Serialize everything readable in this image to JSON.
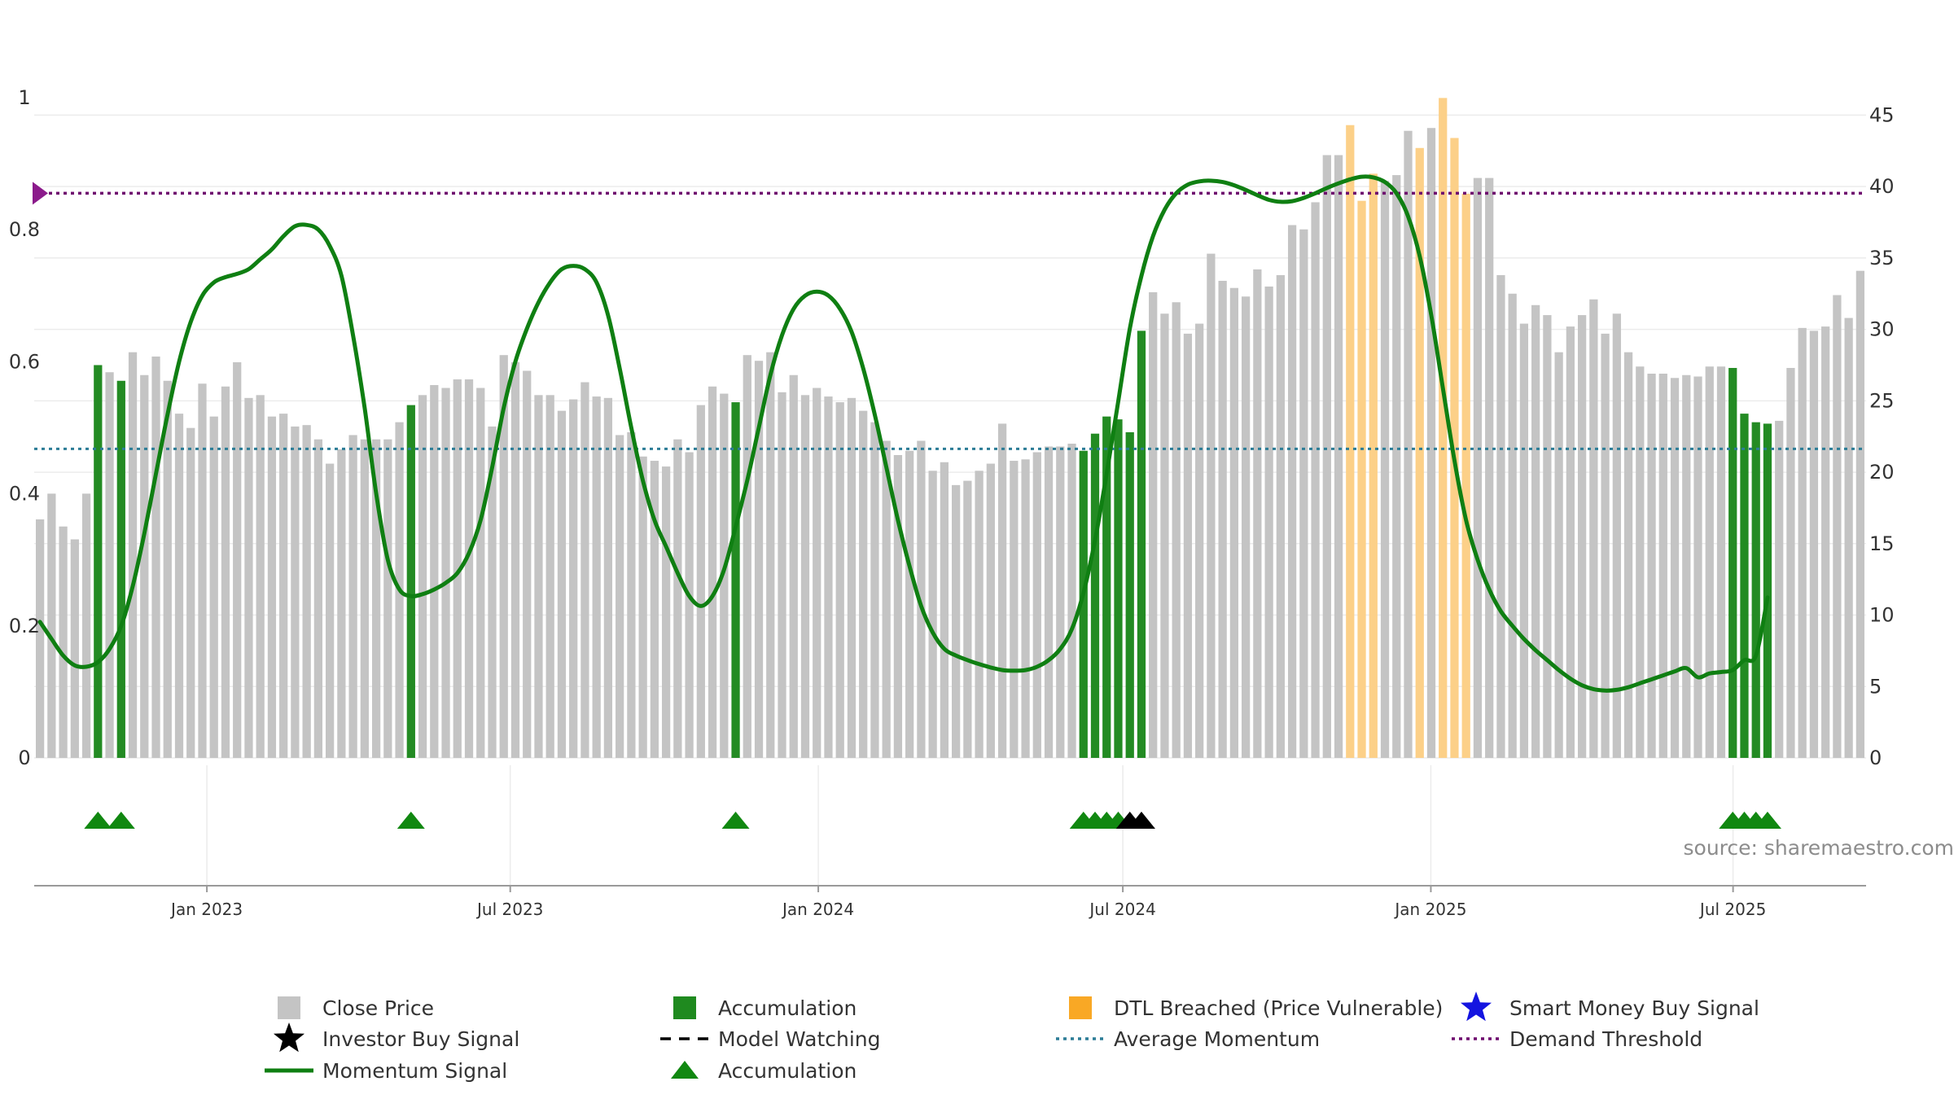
{
  "chart_data": {
    "type": "bar",
    "source": "source: sharemaestro.com",
    "left_axis": {
      "min": 0,
      "max": 1,
      "ticks": [
        "0",
        "0.2",
        "0.4",
        "0.6",
        "0.8",
        "1"
      ],
      "tick_values": [
        0,
        0.2,
        0.4,
        0.6,
        0.8,
        1
      ]
    },
    "right_axis": {
      "min": 0,
      "max": 48.5,
      "ticks": [
        "0",
        "5",
        "10",
        "15",
        "20",
        "25",
        "30",
        "35",
        "40",
        "45"
      ],
      "tick_values": [
        0,
        5,
        10,
        15,
        20,
        25,
        30,
        35,
        40,
        45
      ]
    },
    "x_axis": {
      "ticks": [
        "Jan 2023",
        "Jul 2023",
        "Jan 2024",
        "Jul 2024",
        "Jan 2025",
        "Jul 2025"
      ],
      "tick_positions": [
        14.8,
        40.8,
        67.2,
        93.3,
        119.7,
        145.6
      ],
      "total_weeks": 157
    },
    "close_price": [
      16.7,
      18.5,
      16.2,
      15.3,
      18.5,
      27.5,
      27.0,
      26.4,
      28.4,
      26.8,
      28.1,
      26.4,
      24.1,
      23.1,
      26.2,
      23.9,
      26.0,
      27.7,
      25.2,
      25.4,
      23.9,
      24.1,
      23.2,
      23.3,
      22.3,
      20.6,
      21.6,
      22.6,
      22.3,
      22.3,
      22.3,
      23.5,
      24.7,
      25.4,
      26.1,
      25.9,
      26.5,
      26.5,
      25.9,
      23.2,
      28.2,
      27.7,
      27.1,
      25.4,
      25.4,
      24.3,
      25.1,
      26.3,
      25.3,
      25.2,
      22.6,
      22.8,
      21.1,
      20.8,
      20.4,
      22.3,
      21.4,
      24.7,
      26.0,
      25.5,
      24.9,
      28.2,
      27.8,
      28.4,
      25.6,
      26.8,
      25.4,
      25.9,
      25.3,
      24.9,
      25.2,
      24.3,
      23.5,
      22.2,
      21.2,
      21.5,
      22.2,
      20.1,
      20.7,
      19.1,
      19.4,
      20.1,
      20.6,
      23.4,
      20.8,
      20.9,
      21.4,
      21.8,
      21.8,
      22.0,
      21.5,
      22.7,
      23.9,
      23.7,
      22.8,
      29.9,
      32.6,
      31.1,
      31.9,
      29.7,
      30.4,
      35.3,
      33.4,
      32.9,
      32.3,
      34.2,
      33.0,
      33.8,
      37.3,
      37.0,
      38.9,
      42.2,
      42.2,
      44.3,
      39.0,
      40.9,
      40.4,
      40.8,
      43.9,
      42.7,
      44.1,
      46.2,
      43.4,
      39.5,
      40.6,
      40.6,
      33.8,
      32.5,
      30.4,
      31.7,
      31.0,
      28.4,
      30.2,
      31.0,
      32.1,
      29.7,
      31.1,
      28.4,
      27.4,
      26.9,
      26.9,
      26.6,
      26.8,
      26.7,
      27.4,
      27.4,
      27.3,
      24.1,
      23.5,
      23.4,
      23.6,
      27.3,
      30.1,
      29.9,
      30.2,
      32.4,
      30.8,
      34.1
    ],
    "accumulation_weeks": [
      5,
      7,
      32,
      60,
      90,
      91,
      92,
      93,
      94,
      95,
      146,
      147,
      148,
      149
    ],
    "dtl_breached_weeks": [
      113,
      114,
      115,
      119,
      121,
      122,
      123
    ],
    "momentum_signal": [
      [
        0,
        0.206
      ],
      [
        1,
        0.18
      ],
      [
        2,
        0.155
      ],
      [
        3,
        0.14
      ],
      [
        4,
        0.138
      ],
      [
        5,
        0.145
      ],
      [
        6,
        0.165
      ],
      [
        7,
        0.2
      ],
      [
        8,
        0.26
      ],
      [
        9,
        0.34
      ],
      [
        10,
        0.43
      ],
      [
        11,
        0.52
      ],
      [
        12,
        0.6
      ],
      [
        13,
        0.66
      ],
      [
        14,
        0.7
      ],
      [
        15,
        0.72
      ],
      [
        16,
        0.728
      ],
      [
        17,
        0.733
      ],
      [
        18,
        0.74
      ],
      [
        19,
        0.755
      ],
      [
        20,
        0.77
      ],
      [
        21,
        0.79
      ],
      [
        22,
        0.805
      ],
      [
        23,
        0.807
      ],
      [
        24,
        0.8
      ],
      [
        25,
        0.775
      ],
      [
        26,
        0.73
      ],
      [
        27,
        0.64
      ],
      [
        28,
        0.53
      ],
      [
        29,
        0.4
      ],
      [
        30,
        0.3
      ],
      [
        31,
        0.255
      ],
      [
        32,
        0.245
      ],
      [
        33,
        0.248
      ],
      [
        34,
        0.255
      ],
      [
        35,
        0.265
      ],
      [
        36,
        0.28
      ],
      [
        37,
        0.31
      ],
      [
        38,
        0.36
      ],
      [
        39,
        0.44
      ],
      [
        40,
        0.53
      ],
      [
        41,
        0.6
      ],
      [
        42,
        0.65
      ],
      [
        43,
        0.69
      ],
      [
        44,
        0.72
      ],
      [
        45,
        0.74
      ],
      [
        46,
        0.745
      ],
      [
        47,
        0.74
      ],
      [
        48,
        0.72
      ],
      [
        49,
        0.67
      ],
      [
        50,
        0.59
      ],
      [
        51,
        0.5
      ],
      [
        52,
        0.42
      ],
      [
        53,
        0.36
      ],
      [
        54,
        0.32
      ],
      [
        55,
        0.28
      ],
      [
        56,
        0.245
      ],
      [
        57,
        0.23
      ],
      [
        58,
        0.245
      ],
      [
        59,
        0.285
      ],
      [
        60,
        0.35
      ],
      [
        61,
        0.42
      ],
      [
        62,
        0.5
      ],
      [
        63,
        0.58
      ],
      [
        64,
        0.64
      ],
      [
        65,
        0.68
      ],
      [
        66,
        0.7
      ],
      [
        67,
        0.706
      ],
      [
        68,
        0.7
      ],
      [
        69,
        0.68
      ],
      [
        70,
        0.645
      ],
      [
        71,
        0.59
      ],
      [
        72,
        0.52
      ],
      [
        73,
        0.44
      ],
      [
        74,
        0.36
      ],
      [
        75,
        0.29
      ],
      [
        76,
        0.23
      ],
      [
        77,
        0.19
      ],
      [
        78,
        0.165
      ],
      [
        79,
        0.155
      ],
      [
        80,
        0.148
      ],
      [
        81,
        0.142
      ],
      [
        82,
        0.137
      ],
      [
        83,
        0.133
      ],
      [
        84,
        0.132
      ],
      [
        85,
        0.133
      ],
      [
        86,
        0.138
      ],
      [
        87,
        0.148
      ],
      [
        88,
        0.165
      ],
      [
        89,
        0.195
      ],
      [
        90,
        0.25
      ],
      [
        91,
        0.33
      ],
      [
        92,
        0.43
      ],
      [
        93,
        0.54
      ],
      [
        94,
        0.65
      ],
      [
        95,
        0.73
      ],
      [
        96,
        0.79
      ],
      [
        97,
        0.83
      ],
      [
        98,
        0.855
      ],
      [
        99,
        0.868
      ],
      [
        100,
        0.873
      ],
      [
        101,
        0.874
      ],
      [
        102,
        0.872
      ],
      [
        103,
        0.867
      ],
      [
        104,
        0.86
      ],
      [
        105,
        0.852
      ],
      [
        106,
        0.845
      ],
      [
        107,
        0.842
      ],
      [
        108,
        0.843
      ],
      [
        109,
        0.848
      ],
      [
        110,
        0.855
      ],
      [
        111,
        0.863
      ],
      [
        112,
        0.87
      ],
      [
        113,
        0.876
      ],
      [
        114,
        0.88
      ],
      [
        115,
        0.879
      ],
      [
        116,
        0.872
      ],
      [
        117,
        0.855
      ],
      [
        118,
        0.82
      ],
      [
        119,
        0.76
      ],
      [
        120,
        0.67
      ],
      [
        121,
        0.56
      ],
      [
        122,
        0.45
      ],
      [
        123,
        0.36
      ],
      [
        124,
        0.3
      ],
      [
        125,
        0.255
      ],
      [
        126,
        0.222
      ],
      [
        127,
        0.2
      ],
      [
        128,
        0.18
      ],
      [
        129,
        0.163
      ],
      [
        130,
        0.148
      ],
      [
        131,
        0.133
      ],
      [
        132,
        0.12
      ],
      [
        133,
        0.11
      ],
      [
        134,
        0.104
      ],
      [
        135,
        0.102
      ],
      [
        136,
        0.103
      ],
      [
        137,
        0.107
      ],
      [
        138,
        0.113
      ],
      [
        139,
        0.119
      ],
      [
        140,
        0.125
      ],
      [
        141,
        0.131
      ],
      [
        142,
        0.136
      ],
      [
        143,
        0.122
      ],
      [
        144,
        0.128
      ],
      [
        145,
        0.13
      ],
      [
        146,
        0.133
      ],
      [
        147,
        0.148
      ],
      [
        148,
        0.155
      ],
      [
        149,
        0.243
      ]
    ],
    "average_momentum": 0.468,
    "demand_threshold": 0.855,
    "accumulation_markers": [
      5,
      7,
      32,
      60,
      90,
      91,
      92,
      93,
      146,
      147,
      148,
      149
    ],
    "investor_buy_markers": [
      94,
      95
    ],
    "colors": {
      "close_price": "#c4c4c4",
      "accumulation": "#238b23",
      "dtl_breached": "#fcd088",
      "momentum": "#0f7f12",
      "average_momentum": "#2b7c96",
      "demand_threshold": "#6e0a6e",
      "threshold_marker": "#8b1a8b",
      "accumulation_marker": "#118811",
      "investor_marker": "#000000",
      "smart_money": "#1414e0",
      "legend_accumulation_square": "#1f8a1f",
      "legend_dtl_square": "#f9a825"
    },
    "legend": [
      {
        "key": "close_price",
        "label": "Close Price",
        "symbol": "square-grey"
      },
      {
        "key": "accumulation",
        "label": "Accumulation",
        "symbol": "square-green"
      },
      {
        "key": "dtl_breached",
        "label": "DTL Breached (Price Vulnerable)",
        "symbol": "square-orange"
      },
      {
        "key": "smart_money",
        "label": "Smart Money Buy Signal",
        "symbol": "star-blue"
      },
      {
        "key": "investor_buy",
        "label": "Investor Buy Signal",
        "symbol": "star-black"
      },
      {
        "key": "model_watching",
        "label": "Model Watching",
        "symbol": "dash-black"
      },
      {
        "key": "average_momentum",
        "label": "Average Momentum",
        "symbol": "dot-blue"
      },
      {
        "key": "demand_threshold",
        "label": "Demand Threshold",
        "symbol": "dot-purple"
      },
      {
        "key": "momentum_signal",
        "label": "Momentum Signal",
        "symbol": "line-green"
      },
      {
        "key": "accumulation_triangle",
        "label": "Accumulation",
        "symbol": "triangle-green"
      }
    ]
  }
}
